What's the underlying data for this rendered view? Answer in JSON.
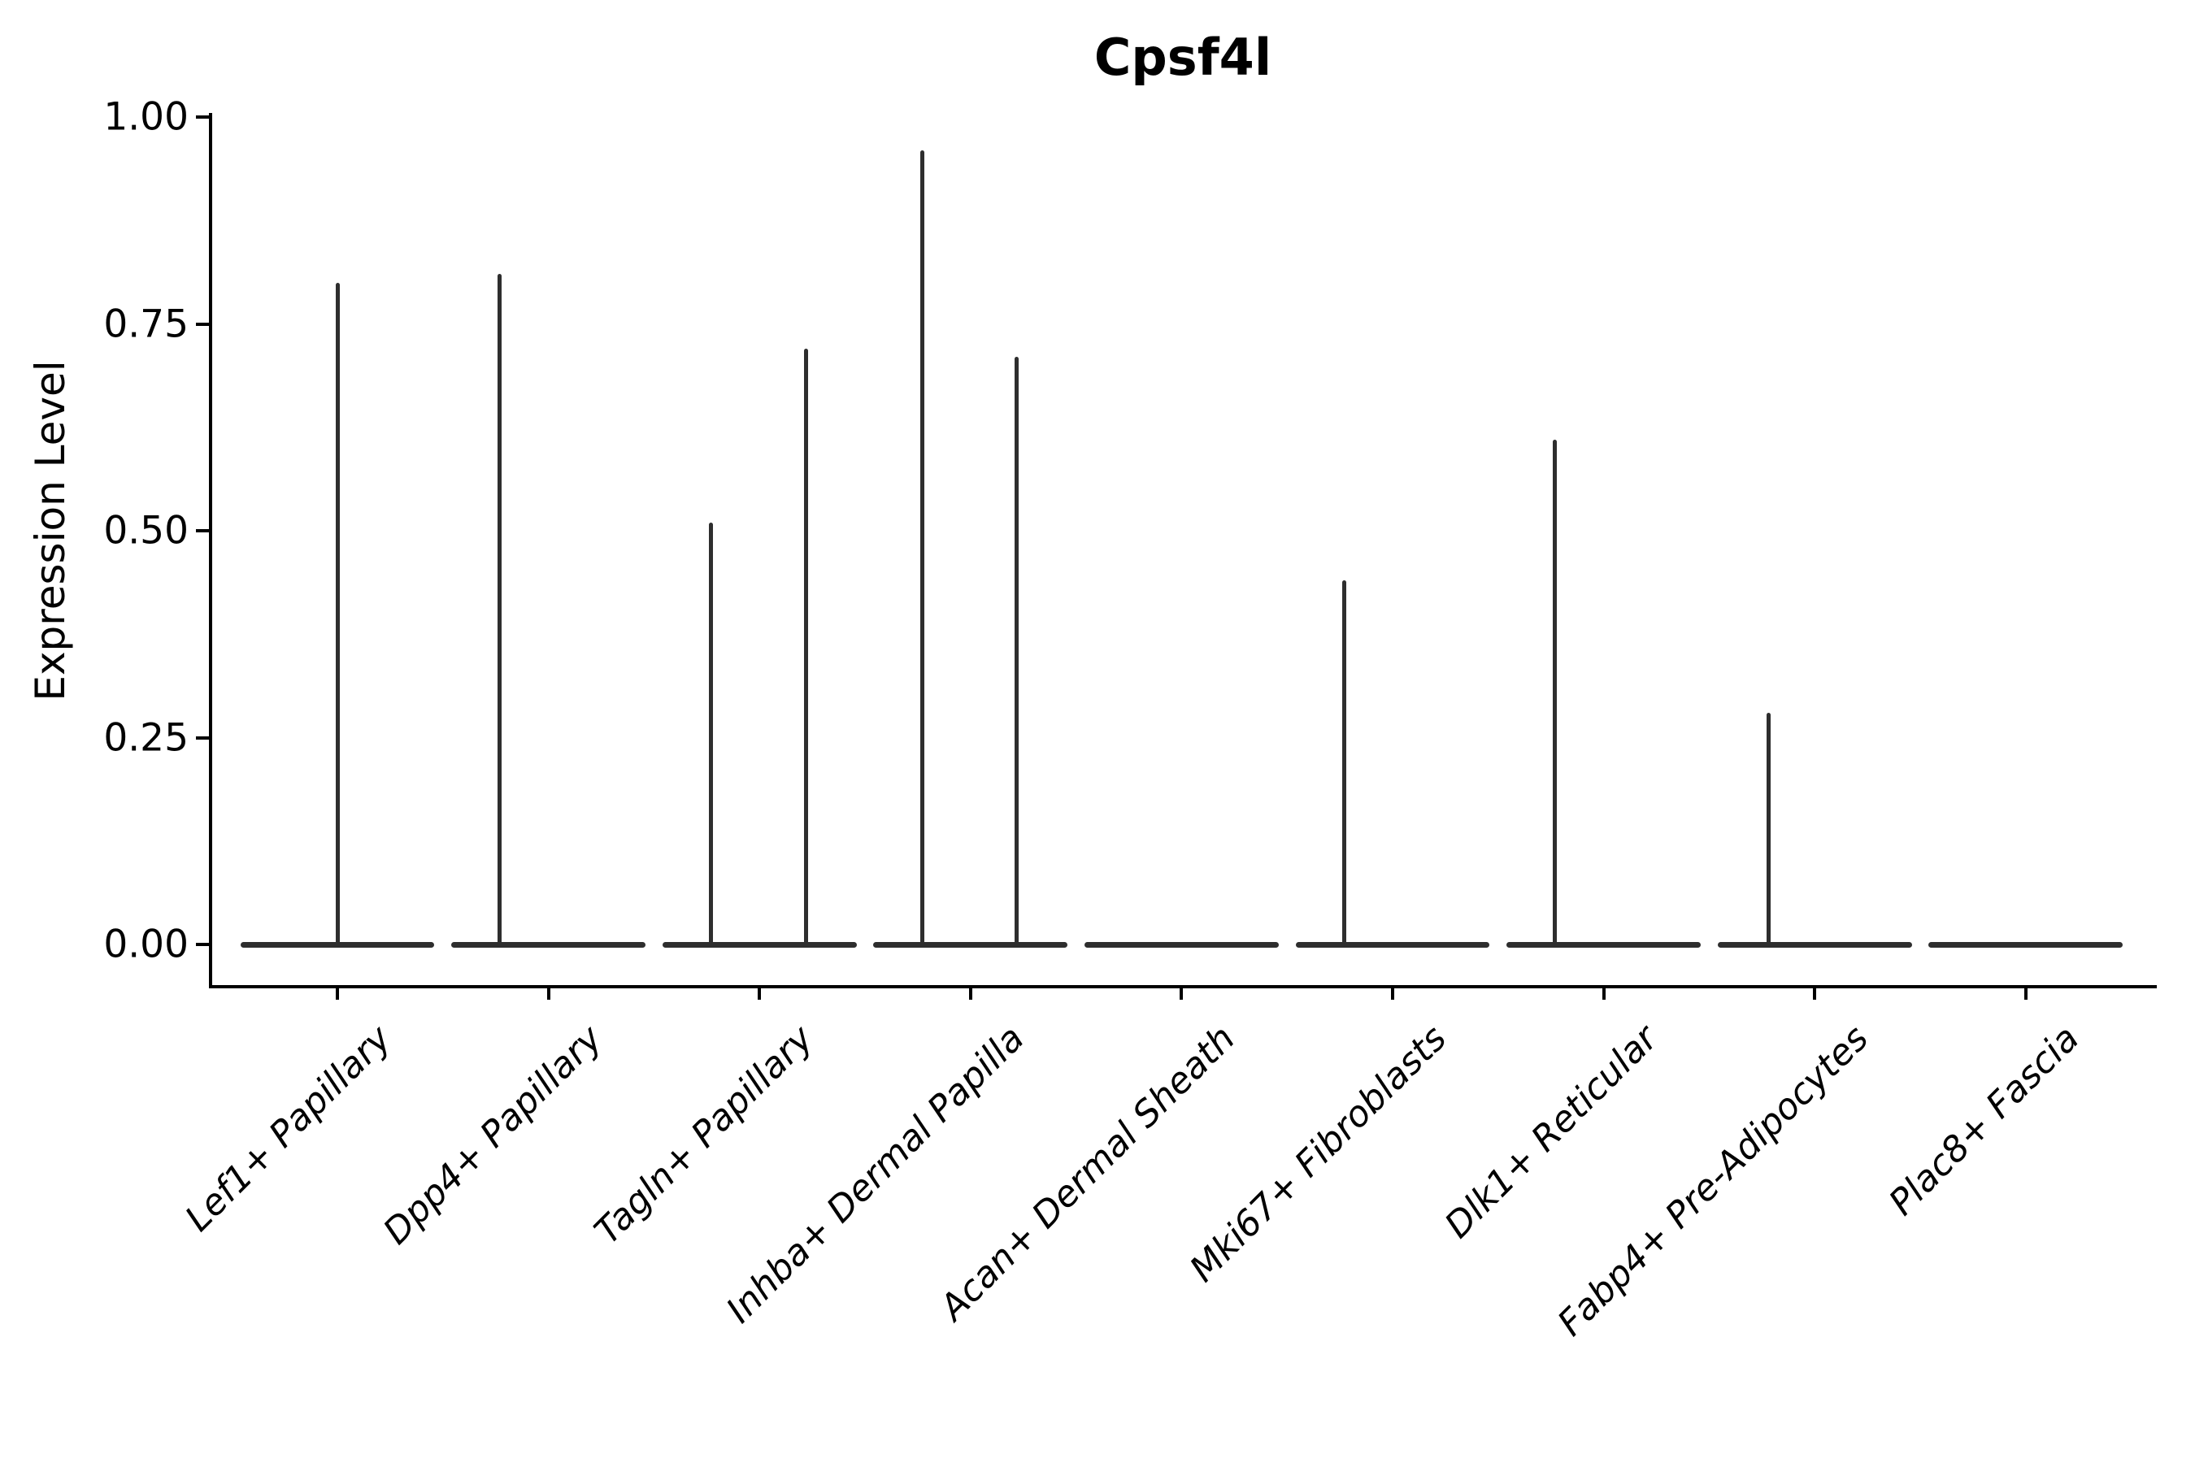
{
  "chart_data": {
    "type": "violin",
    "title": "Cpsf4l",
    "xlabel": "",
    "ylabel": "Expression Level",
    "ylim": [
      0.0,
      1.0
    ],
    "yticks": [
      0.0,
      0.25,
      0.5,
      0.75,
      1.0
    ],
    "ytick_labels": [
      "0.00",
      "0.25",
      "0.50",
      "0.75",
      "1.00"
    ],
    "grid": false,
    "legend": "none",
    "x_label_rotation_deg": 45,
    "x_label_style": "italic",
    "categories": [
      "Lef1+ Papillary",
      "Dpp4+ Papillary",
      "Tagln+ Papillary",
      "Inhba+ Dermal Papilla",
      "Acan+ Dermal Sheath",
      "Mki67+ Fibroblasts",
      "Dlk1+ Reticular",
      "Fabp4+ Pre-Adipocytes",
      "Plac8+ Fascia"
    ],
    "violins": [
      {
        "category": "Lef1+ Papillary",
        "baseline_value": 0.0,
        "baseline_halfwidth": 0.46,
        "spikes": [
          {
            "offset": 0.0,
            "value": 0.8
          }
        ]
      },
      {
        "category": "Dpp4+ Papillary",
        "baseline_value": 0.0,
        "baseline_halfwidth": 0.46,
        "spikes": [
          {
            "offset": -0.23,
            "value": 0.81
          }
        ]
      },
      {
        "category": "Tagln+ Papillary",
        "baseline_value": 0.0,
        "baseline_halfwidth": 0.46,
        "spikes": [
          {
            "offset": -0.23,
            "value": 0.51
          },
          {
            "offset": 0.22,
            "value": 0.72
          }
        ]
      },
      {
        "category": "Inhba+ Dermal Papilla",
        "baseline_value": 0.0,
        "baseline_halfwidth": 0.46,
        "spikes": [
          {
            "offset": -0.23,
            "value": 0.96
          },
          {
            "offset": 0.22,
            "value": 0.71
          }
        ]
      },
      {
        "category": "Acan+ Dermal Sheath",
        "baseline_value": 0.0,
        "baseline_halfwidth": 0.46,
        "spikes": []
      },
      {
        "category": "Mki67+ Fibroblasts",
        "baseline_value": 0.0,
        "baseline_halfwidth": 0.46,
        "spikes": [
          {
            "offset": -0.23,
            "value": 0.44
          }
        ]
      },
      {
        "category": "Dlk1+ Reticular",
        "baseline_value": 0.0,
        "baseline_halfwidth": 0.46,
        "spikes": [
          {
            "offset": -0.23,
            "value": 0.61
          }
        ]
      },
      {
        "category": "Fabp4+ Pre-Adipocytes",
        "baseline_value": 0.0,
        "baseline_halfwidth": 0.46,
        "spikes": [
          {
            "offset": -0.22,
            "value": 0.28
          }
        ]
      },
      {
        "category": "Plac8+ Fascia",
        "baseline_value": 0.0,
        "baseline_halfwidth": 0.46,
        "spikes": []
      }
    ],
    "colors": {
      "violin_line": "#2e2e2e",
      "axis": "#000000",
      "text": "#000000",
      "background": "#ffffff"
    }
  }
}
